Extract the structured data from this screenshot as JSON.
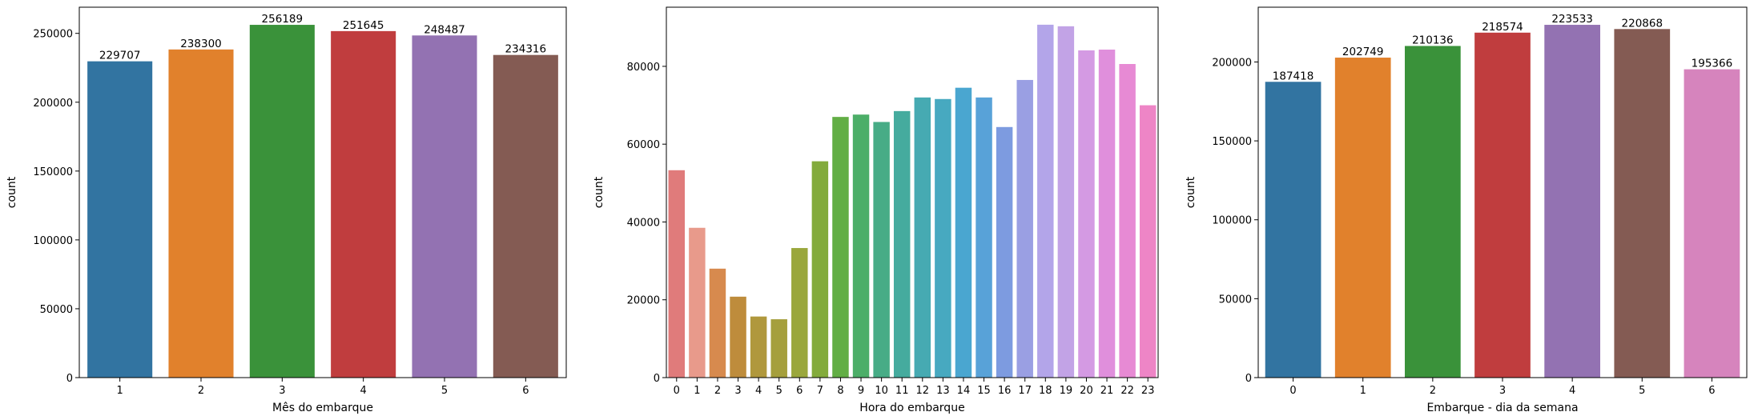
{
  "chart_data": [
    {
      "type": "bar",
      "xlabel": "Mês do embarque",
      "ylabel": "count",
      "categories": [
        "1",
        "2",
        "3",
        "4",
        "5",
        "6"
      ],
      "values": [
        229707,
        238300,
        256189,
        251645,
        248487,
        234316
      ],
      "data_labels": [
        "229707",
        "238300",
        "256189",
        "251645",
        "248487",
        "234316"
      ],
      "colors": [
        "#3274a1",
        "#e1812c",
        "#3a923a",
        "#c03d3e",
        "#9372b2",
        "#845b53"
      ],
      "yticks": [
        0,
        50000,
        100000,
        150000,
        200000,
        250000
      ],
      "ylim": [
        0,
        269000
      ],
      "grid": false
    },
    {
      "type": "bar",
      "xlabel": "Hora do embarque",
      "ylabel": "count",
      "categories": [
        "0",
        "1",
        "2",
        "3",
        "4",
        "5",
        "6",
        "7",
        "8",
        "9",
        "10",
        "11",
        "12",
        "13",
        "14",
        "15",
        "16",
        "17",
        "18",
        "19",
        "20",
        "21",
        "22",
        "23"
      ],
      "values": [
        53300,
        38500,
        28000,
        20800,
        15700,
        15000,
        33300,
        55600,
        67000,
        67600,
        65700,
        68500,
        72000,
        71600,
        74500,
        72000,
        64400,
        76500,
        90700,
        90300,
        84100,
        84300,
        80600,
        70000
      ],
      "colors": [
        "#e07b7b",
        "#e89a8b",
        "#d78a4e",
        "#be8c3c",
        "#b0983d",
        "#a59f3d",
        "#9aa73c",
        "#83ab3c",
        "#62ae45",
        "#4cae68",
        "#47ac86",
        "#45ab9e",
        "#46aab2",
        "#47a9c0",
        "#4aa6d0",
        "#58a2d8",
        "#7d9be0",
        "#9a9fe3",
        "#b3a5e9",
        "#c2a3e6",
        "#d49ae3",
        "#e08fdc",
        "#e78ad4",
        "#ee85c6"
      ],
      "yticks": [
        0,
        20000,
        40000,
        60000,
        80000
      ],
      "ylim": [
        0,
        95200
      ],
      "grid": false
    },
    {
      "type": "bar",
      "xlabel": "Embarque - dia da semana",
      "ylabel": "count",
      "categories": [
        "0",
        "1",
        "2",
        "3",
        "4",
        "5",
        "6"
      ],
      "values": [
        187418,
        202749,
        210136,
        218574,
        223533,
        220868,
        195366
      ],
      "data_labels": [
        "187418",
        "202749",
        "210136",
        "218574",
        "223533",
        "220868",
        "195366"
      ],
      "colors": [
        "#3274a1",
        "#e1812c",
        "#3a923a",
        "#c03d3e",
        "#9372b2",
        "#845b53",
        "#d684bd"
      ],
      "yticks": [
        0,
        50000,
        100000,
        150000,
        200000
      ],
      "ylim": [
        0,
        234700
      ],
      "grid": false
    }
  ]
}
